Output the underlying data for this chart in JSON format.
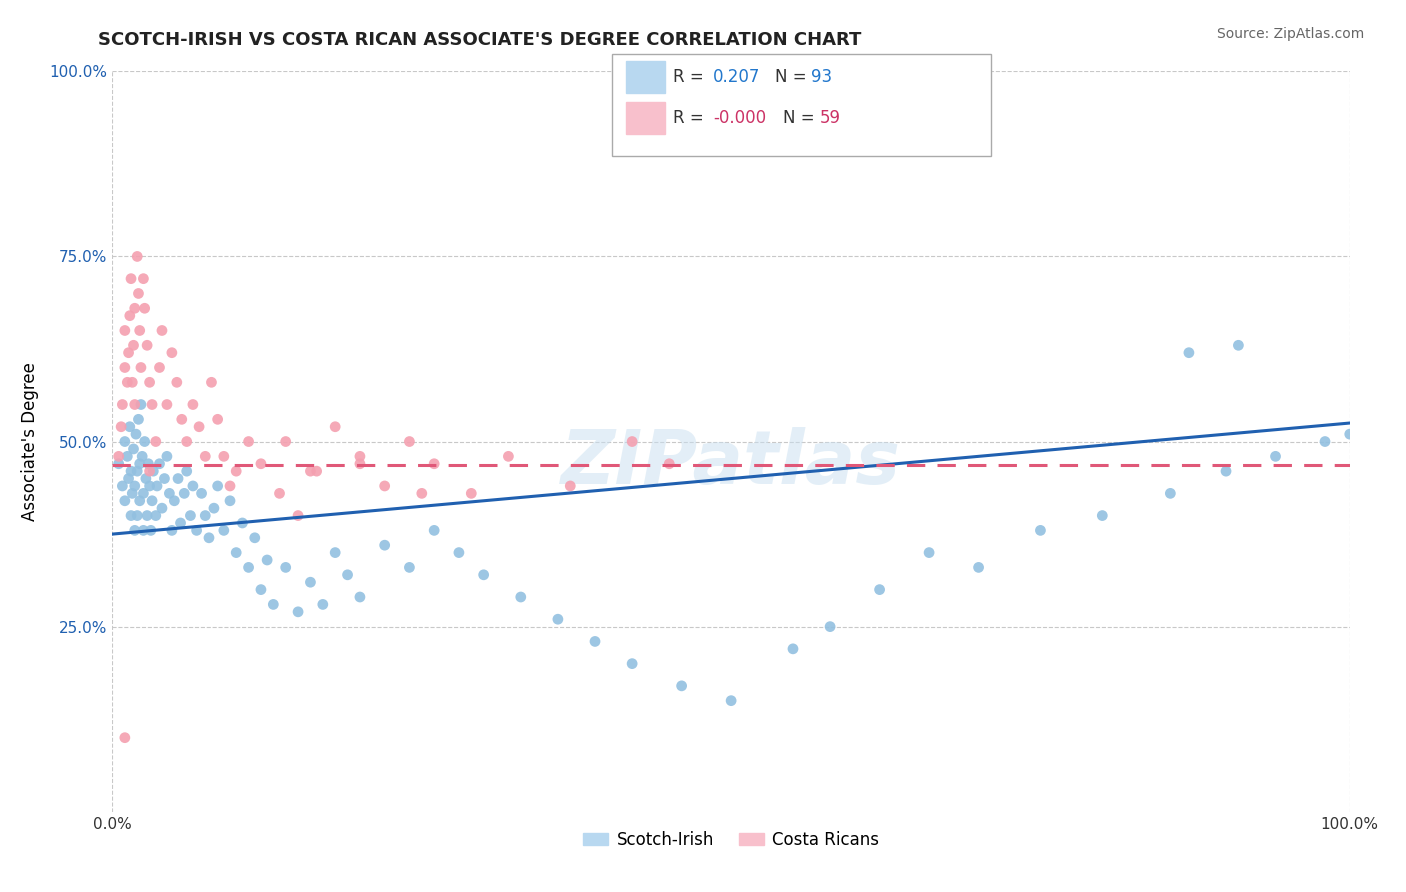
{
  "title": "SCOTCH-IRISH VS COSTA RICAN ASSOCIATE'S DEGREE CORRELATION CHART",
  "source": "Source: ZipAtlas.com",
  "ylabel": "Associate's Degree",
  "xlim": [
    0.0,
    1.0
  ],
  "ylim": [
    0.0,
    1.0
  ],
  "x_tick_labels": [
    "0.0%",
    "100.0%"
  ],
  "y_tick_labels": [
    "",
    "25.0%",
    "50.0%",
    "75.0%",
    "100.0%"
  ],
  "scotch_irish_color": "#92c0e0",
  "costa_rican_color": "#f4a0b0",
  "blue_line_color": "#2060b0",
  "red_line_color": "#e05878",
  "watermark": "ZIPatlas",
  "background_color": "#ffffff",
  "grid_color": "#c8c8c8",
  "R_scotch": 0.207,
  "N_scotch": 93,
  "R_costa": 0.0,
  "N_costa": 59,
  "blue_line_y0": 0.375,
  "blue_line_y1": 0.525,
  "red_line_y0": 0.468,
  "red_line_y1": 0.468,
  "scotch_irish_x": [
    0.005,
    0.008,
    0.01,
    0.01,
    0.012,
    0.013,
    0.014,
    0.015,
    0.015,
    0.016,
    0.017,
    0.018,
    0.018,
    0.019,
    0.02,
    0.02,
    0.021,
    0.022,
    0.022,
    0.023,
    0.024,
    0.025,
    0.025,
    0.026,
    0.027,
    0.028,
    0.029,
    0.03,
    0.031,
    0.032,
    0.033,
    0.035,
    0.036,
    0.038,
    0.04,
    0.042,
    0.044,
    0.046,
    0.048,
    0.05,
    0.053,
    0.055,
    0.058,
    0.06,
    0.063,
    0.065,
    0.068,
    0.072,
    0.075,
    0.078,
    0.082,
    0.085,
    0.09,
    0.095,
    0.1,
    0.105,
    0.11,
    0.115,
    0.12,
    0.125,
    0.13,
    0.14,
    0.15,
    0.16,
    0.17,
    0.18,
    0.19,
    0.2,
    0.22,
    0.24,
    0.26,
    0.28,
    0.3,
    0.33,
    0.36,
    0.39,
    0.42,
    0.46,
    0.5,
    0.55,
    0.58,
    0.62,
    0.66,
    0.7,
    0.75,
    0.8,
    0.855,
    0.9,
    0.87,
    0.91,
    0.94,
    0.98,
    1.0
  ],
  "scotch_irish_y": [
    0.47,
    0.44,
    0.5,
    0.42,
    0.48,
    0.45,
    0.52,
    0.46,
    0.4,
    0.43,
    0.49,
    0.44,
    0.38,
    0.51,
    0.46,
    0.4,
    0.53,
    0.47,
    0.42,
    0.55,
    0.48,
    0.43,
    0.38,
    0.5,
    0.45,
    0.4,
    0.47,
    0.44,
    0.38,
    0.42,
    0.46,
    0.4,
    0.44,
    0.47,
    0.41,
    0.45,
    0.48,
    0.43,
    0.38,
    0.42,
    0.45,
    0.39,
    0.43,
    0.46,
    0.4,
    0.44,
    0.38,
    0.43,
    0.4,
    0.37,
    0.41,
    0.44,
    0.38,
    0.42,
    0.35,
    0.39,
    0.33,
    0.37,
    0.3,
    0.34,
    0.28,
    0.33,
    0.27,
    0.31,
    0.28,
    0.35,
    0.32,
    0.29,
    0.36,
    0.33,
    0.38,
    0.35,
    0.32,
    0.29,
    0.26,
    0.23,
    0.2,
    0.17,
    0.15,
    0.22,
    0.25,
    0.3,
    0.35,
    0.33,
    0.38,
    0.4,
    0.43,
    0.46,
    0.62,
    0.63,
    0.48,
    0.5,
    0.51
  ],
  "costa_rican_x": [
    0.005,
    0.007,
    0.008,
    0.01,
    0.01,
    0.012,
    0.013,
    0.014,
    0.015,
    0.016,
    0.017,
    0.018,
    0.018,
    0.02,
    0.021,
    0.022,
    0.023,
    0.025,
    0.026,
    0.028,
    0.03,
    0.032,
    0.035,
    0.038,
    0.04,
    0.044,
    0.048,
    0.052,
    0.056,
    0.06,
    0.065,
    0.07,
    0.075,
    0.08,
    0.085,
    0.09,
    0.095,
    0.1,
    0.11,
    0.12,
    0.135,
    0.15,
    0.165,
    0.18,
    0.2,
    0.22,
    0.24,
    0.26,
    0.29,
    0.32,
    0.37,
    0.42,
    0.45,
    0.2,
    0.25,
    0.16,
    0.14,
    0.03,
    0.01
  ],
  "costa_rican_y": [
    0.48,
    0.52,
    0.55,
    0.6,
    0.65,
    0.58,
    0.62,
    0.67,
    0.72,
    0.58,
    0.63,
    0.68,
    0.55,
    0.75,
    0.7,
    0.65,
    0.6,
    0.72,
    0.68,
    0.63,
    0.58,
    0.55,
    0.5,
    0.6,
    0.65,
    0.55,
    0.62,
    0.58,
    0.53,
    0.5,
    0.55,
    0.52,
    0.48,
    0.58,
    0.53,
    0.48,
    0.44,
    0.46,
    0.5,
    0.47,
    0.43,
    0.4,
    0.46,
    0.52,
    0.48,
    0.44,
    0.5,
    0.47,
    0.43,
    0.48,
    0.44,
    0.5,
    0.47,
    0.47,
    0.43,
    0.46,
    0.5,
    0.46,
    0.1
  ]
}
